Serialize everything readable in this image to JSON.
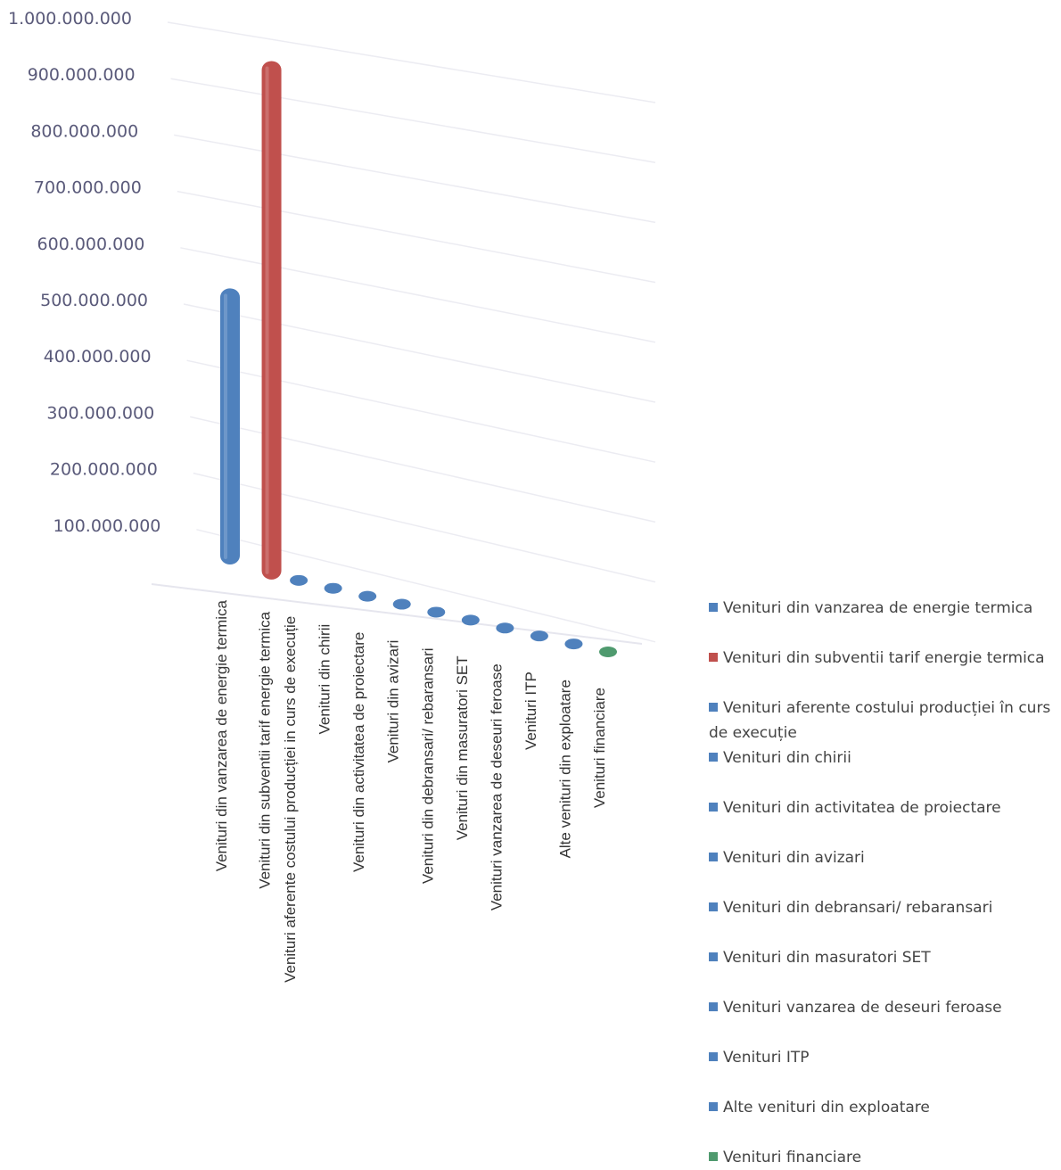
{
  "chart_data": {
    "type": "bar",
    "title": "",
    "xlabel": "",
    "ylabel": "",
    "ylim": [
      0,
      1000000000
    ],
    "yticks": [
      "1.000.000.000",
      "900.000.000",
      "800.000.000",
      "700.000.000",
      "600.000.000",
      "500.000.000",
      "400.000.000",
      "300.000.000",
      "200.000.000",
      "100.000.000"
    ],
    "ytick_values": [
      1000000000,
      900000000,
      800000000,
      700000000,
      600000000,
      500000000,
      400000000,
      300000000,
      200000000,
      100000000
    ],
    "grid": true,
    "legend_position": "right",
    "categories": [
      "Venituri din vanzarea de energie termica",
      "Venituri din subventii tarif energie termica",
      "Venituri aferente costului producției in curs de execuție",
      "Venituri din chirii",
      "Venituri din activitatea de proiectare",
      "Venituri din avizari",
      "Venituri din debransari/ rebaransari",
      "Venituri din masuratori SET",
      "Venituri vanzarea de deseuri feroase",
      "Venituri ITP",
      "Alte venituri din exploatare",
      "Venituri financiare"
    ],
    "values": [
      490000000,
      920000000,
      0,
      0,
      0,
      0,
      0,
      0,
      0,
      0,
      0,
      0
    ],
    "colors": [
      "#4f81bd",
      "#c0504d",
      "#4f81bd",
      "#4f81bd",
      "#4f81bd",
      "#4f81bd",
      "#4f81bd",
      "#4f81bd",
      "#4f81bd",
      "#4f81bd",
      "#4f81bd",
      "#4f9a6e"
    ]
  },
  "legend": [
    "Venituri din vanzarea de energie termica",
    "Venituri din subventii tarif energie termica",
    "Venituri aferente costului producției în curs de execuție",
    "Venituri din chirii",
    "Venituri din activitatea de proiectare",
    "Venituri din avizari",
    "Venituri din debransari/ rebaransari",
    "Venituri din masuratori SET",
    "Venituri vanzarea de deseuri feroase",
    "Venituri ITP",
    "Alte venituri din exploatare",
    "Venituri financiare"
  ]
}
